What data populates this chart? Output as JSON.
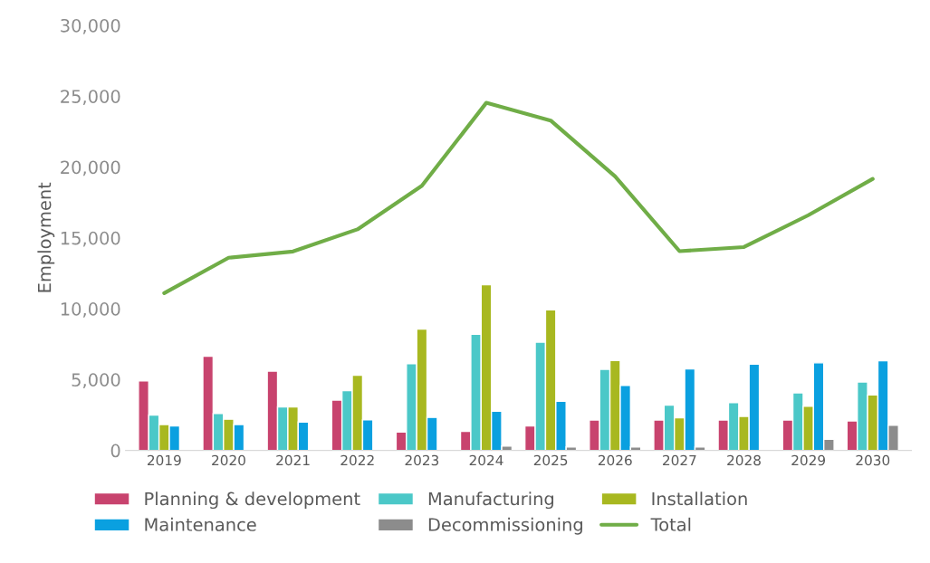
{
  "chart_data": {
    "type": "bar",
    "ylabel": "Employment",
    "categories": [
      "2019",
      "2020",
      "2021",
      "2022",
      "2023",
      "2024",
      "2025",
      "2026",
      "2027",
      "2028",
      "2029",
      "2030"
    ],
    "series": [
      {
        "name": "Planning & development",
        "color": "#c8436e",
        "values": [
          4900,
          6650,
          5600,
          3550,
          1290,
          1350,
          1730,
          2150,
          2150,
          2150,
          2150,
          2080
        ]
      },
      {
        "name": "Manufacturing",
        "color": "#4bc8c8",
        "values": [
          2500,
          2600,
          3070,
          4220,
          6120,
          8200,
          7640,
          5720,
          3200,
          3380,
          4060,
          4830
        ]
      },
      {
        "name": "Installation",
        "color": "#a8b820",
        "values": [
          1830,
          2200,
          3070,
          5300,
          8570,
          11700,
          9920,
          6350,
          2300,
          2400,
          3120,
          3910
        ]
      },
      {
        "name": "Maintenance",
        "color": "#0aa0e0",
        "values": [
          1730,
          1830,
          2000,
          2160,
          2330,
          2770,
          3470,
          4580,
          5760,
          6080,
          6180,
          6330
        ]
      },
      {
        "name": "Decommissioning",
        "color": "#8c8c8c",
        "values": [
          null,
          null,
          null,
          null,
          null,
          310,
          250,
          250,
          250,
          null,
          790,
          1770
        ]
      },
      {
        "name": "Total",
        "type": "line",
        "color": "#70ad47",
        "values": [
          11100,
          13600,
          14040,
          15600,
          18670,
          24530,
          23280,
          19340,
          14060,
          14350,
          16600,
          19160
        ]
      }
    ],
    "ylim": [
      0,
      30000
    ],
    "yticks": [
      0,
      {
        "value": 5000,
        "label": "5,000"
      },
      {
        "value": 10000,
        "label": "10,000"
      },
      {
        "value": 15000,
        "label": "15,000"
      },
      {
        "value": 20000,
        "label": "20,000"
      },
      {
        "value": 25000,
        "label": "25,000"
      },
      {
        "value": 30000,
        "label": "30,000"
      }
    ],
    "grid": false,
    "legend": "bottom"
  }
}
